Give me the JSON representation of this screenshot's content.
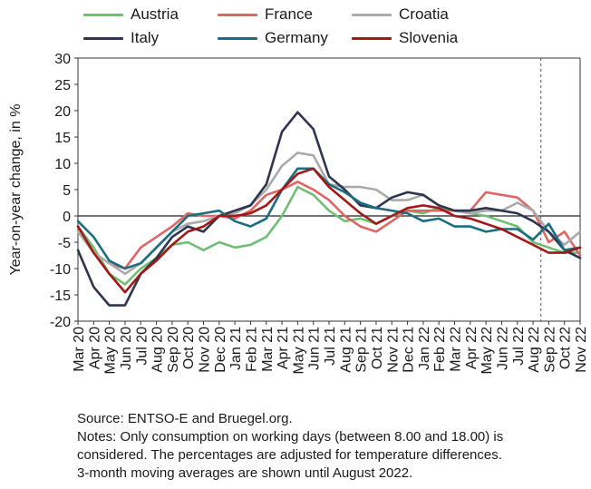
{
  "chart_data": {
    "type": "line",
    "title": "",
    "xlabel": "",
    "ylabel": "Year-on-year change, in %",
    "ylim": [
      -20,
      30
    ],
    "yticks": [
      -20,
      -15,
      -10,
      -5,
      0,
      5,
      10,
      15,
      20,
      25,
      30
    ],
    "grid": false,
    "legend_position": "top",
    "categories": [
      "Mar 20",
      "Apr 20",
      "May 20",
      "Jun 20",
      "Jul 20",
      "Aug 20",
      "Sep 20",
      "Oct 20",
      "Nov 20",
      "Dec 20",
      "Jan 21",
      "Feb 21",
      "Mar 21",
      "Apr 21",
      "May 21",
      "Jun 21",
      "Jul 21",
      "Aug 21",
      "Sep 21",
      "Oct 21",
      "Nov 21",
      "Dec 21",
      "Jan 22",
      "Feb 22",
      "Mar 22",
      "Apr 22",
      "May 22",
      "Jun 22",
      "Jul 22",
      "Aug 22",
      "Sep 22",
      "Oct 22",
      "Nov 22"
    ],
    "x_points": [
      "Mar 20",
      "",
      "Apr 20",
      "",
      "May 20",
      "",
      "Jun 20",
      "",
      "Jul 20",
      "",
      "Aug 20",
      "",
      "Sep 20",
      "",
      "Oct 20",
      "",
      "Nov 20",
      "",
      "Dec 20",
      "",
      "Jan 21",
      "",
      "Feb 21",
      "",
      "Mar 21",
      "",
      "Apr 21",
      "",
      "May 21",
      "",
      "Jun 21",
      "",
      "Jul 21",
      "",
      "Aug 21",
      "",
      "Sep 21",
      "",
      "Oct 21",
      "",
      "Nov 21",
      "",
      "Dec 21",
      "",
      "Jan 22",
      "",
      "Feb 22",
      "",
      "Mar 22",
      "",
      "Apr 22",
      "",
      "May 22",
      "",
      "Jun 22",
      "",
      "Jul 22",
      "",
      "Aug 22",
      "",
      "Sep 22",
      "",
      "Oct 22",
      "",
      "Nov 22"
    ],
    "reference_line_after": "Aug 22",
    "series": [
      {
        "name": "Austria",
        "color": "#6fbf73",
        "values": [
          -2,
          -6,
          -11,
          -13,
          -10,
          -8,
          -5.5,
          -5,
          -6.5,
          -5,
          -6,
          -5.5,
          -4,
          0,
          5.5,
          4,
          1,
          -1,
          -0.5,
          -1.5,
          0,
          1,
          0.5,
          1.5,
          1,
          0.5,
          0,
          -1,
          -2,
          -5,
          -6,
          -7,
          -7
        ]
      },
      {
        "name": "France",
        "color": "#e06666",
        "values": [
          -2,
          -7,
          -9,
          -10,
          -6,
          -4,
          -2,
          0.5,
          0,
          0,
          -0.5,
          1,
          4,
          5,
          6.5,
          5,
          3,
          0,
          -2,
          -3,
          -1,
          1,
          1,
          1,
          1,
          1,
          4.5,
          4,
          3.5,
          1,
          -5,
          -3,
          -7.5
        ]
      },
      {
        "name": "Croatia",
        "color": "#aaaaaa",
        "values": [
          -3,
          -7,
          -9,
          -11,
          -9,
          -6,
          -3,
          -1.5,
          -1,
          0,
          0.5,
          2,
          5,
          9.5,
          12,
          11.5,
          6,
          5.5,
          5.5,
          5,
          3,
          3,
          4,
          2,
          1,
          0.5,
          1,
          1,
          2.5,
          1,
          -3,
          -5.5,
          -3
        ]
      },
      {
        "name": "Italy",
        "color": "#2e3550",
        "values": [
          -6.5,
          -13.5,
          -17,
          -17,
          -11,
          -8,
          -4,
          -2,
          -3,
          0,
          1,
          2,
          6,
          16,
          19.7,
          16.5,
          7.5,
          5,
          2,
          1.5,
          3.5,
          4.5,
          4,
          2,
          1,
          1,
          1.5,
          1,
          0.5,
          -1,
          -3,
          -6.5,
          -8
        ]
      },
      {
        "name": "Germany",
        "color": "#1a6e80",
        "values": [
          -1,
          -4,
          -8.5,
          -10,
          -9,
          -6,
          -3,
          0,
          0.5,
          1,
          -1,
          -2,
          -0.5,
          5,
          9,
          9,
          6,
          4.5,
          2.5,
          1.5,
          1,
          0.5,
          -1,
          -0.5,
          -2,
          -2,
          -3,
          -2.5,
          -2.5,
          -4.5,
          -1.5,
          -6.5,
          -6
        ]
      },
      {
        "name": "Slovenia",
        "color": "#a01818",
        "values": [
          -2,
          -7,
          -11,
          -14.5,
          -11,
          -8.5,
          -5.5,
          -3,
          -2,
          0,
          0,
          0.5,
          2,
          5,
          8,
          9,
          5.5,
          3,
          0.5,
          -1.5,
          0,
          1.5,
          2,
          1.5,
          0,
          -0.5,
          -1.5,
          -2.5,
          -4,
          -5.5,
          -7,
          -7,
          -6
        ]
      }
    ]
  },
  "notes": {
    "source": "Source: ENTSO-E and Bruegel.org.",
    "notes_line1": "Notes: Only consumption on working days (between 8.00 and 18.00) is",
    "notes_line2": "considered. The percentages are adjusted for temperature differences.",
    "notes_line3": "3-month moving averages are shown until August 2022."
  }
}
